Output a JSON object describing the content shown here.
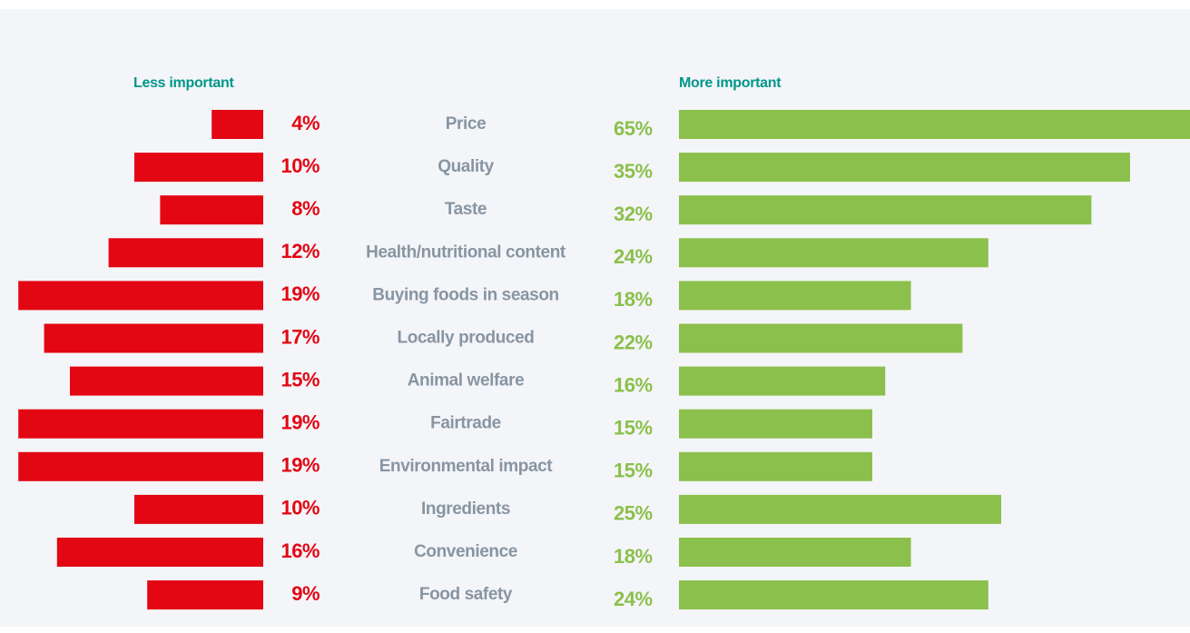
{
  "chart_data": {
    "type": "diverging_bar",
    "categories": [
      "Price",
      "Quality",
      "Taste",
      "Health/nutritional content",
      "Buying foods in season",
      "Locally produced",
      "Animal welfare",
      "Fairtrade",
      "Environmental impact",
      "Ingredients",
      "Convenience",
      "Food safety"
    ],
    "series": [
      {
        "name": "Less important",
        "color": "#e30613",
        "values": [
          4,
          10,
          8,
          12,
          19,
          17,
          15,
          19,
          19,
          10,
          16,
          9
        ],
        "value_labels": [
          "4%",
          "10%",
          "8%",
          "12%",
          "19%",
          "17%",
          "15%",
          "19%",
          "19%",
          "10%",
          "16%",
          "9%"
        ]
      },
      {
        "name": "More important",
        "color": "#8bc04c",
        "values": [
          65,
          35,
          32,
          24,
          18,
          22,
          16,
          15,
          15,
          25,
          18,
          24
        ],
        "value_labels": [
          "65%",
          "35%",
          "32%",
          "24%",
          "18%",
          "22%",
          "16%",
          "15%",
          "15%",
          "25%",
          "18%",
          "24%"
        ]
      }
    ]
  }
}
